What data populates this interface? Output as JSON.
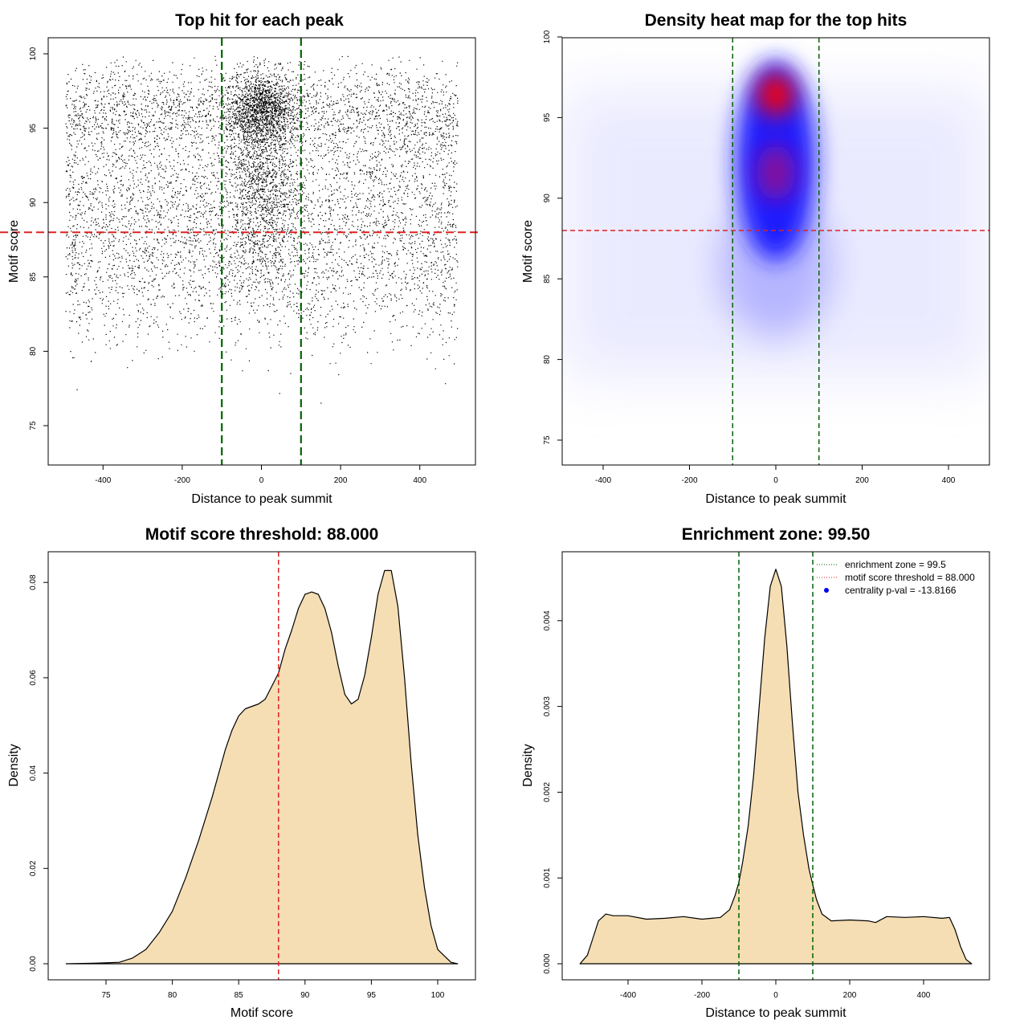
{
  "colors": {
    "threshold_line": "#dd2222",
    "zone_line": "#006400",
    "density_fill": "#f5deb3",
    "heat_low": "#ffffff",
    "heat_mid": "#0000ff",
    "heat_high": "#ff0000",
    "centrality_dot": "#0000ff"
  },
  "chart_data": [
    {
      "type": "scatter",
      "title": "Top hit for each peak",
      "xlabel": "Distance to peak summit",
      "ylabel": "Motif score",
      "xlim": [
        -500,
        500
      ],
      "ylim": [
        73,
        101
      ],
      "xticks": [
        -400,
        -200,
        0,
        200,
        400
      ],
      "yticks": [
        75,
        80,
        85,
        90,
        95,
        100
      ],
      "hline": 88,
      "vlines": [
        -100,
        100
      ],
      "points_description_counts": {
        "background": 9500,
        "central": 5000
      },
      "grid": false
    },
    {
      "type": "heatmap",
      "title": "Density heat map for the top hits",
      "xlabel": "Distance to peak summit",
      "ylabel": "Motif score",
      "xlim": [
        -500,
        500
      ],
      "ylim": [
        73,
        100
      ],
      "xticks": [
        -400,
        -200,
        0,
        200,
        400
      ],
      "yticks": [
        75,
        80,
        85,
        90,
        95,
        100
      ],
      "hline": 88,
      "vlines": [
        -100,
        100
      ],
      "hotspots": [
        {
          "x": 0,
          "y": 96.5,
          "intensity": 1.0
        },
        {
          "x": 0,
          "y": 91.8,
          "intensity": 0.8
        },
        {
          "x": 0,
          "y": 86.5,
          "intensity": 0.35
        }
      ]
    },
    {
      "type": "area",
      "title": "Motif score threshold: 88.000",
      "xlabel": "Motif score",
      "ylabel": "Density",
      "xlim": [
        71.5,
        102.5
      ],
      "ylim": [
        0,
        0.086
      ],
      "xticks": [
        75,
        80,
        85,
        90,
        95,
        100
      ],
      "yticks": [
        0.0,
        0.02,
        0.04,
        0.06,
        0.08
      ],
      "vline": 88,
      "x": [
        72,
        74,
        76,
        77,
        78,
        79,
        80,
        81,
        82,
        83,
        84,
        84.5,
        85,
        85.5,
        86,
        86.5,
        87,
        88,
        88.5,
        89,
        89.5,
        90,
        90.5,
        91,
        91.5,
        92,
        92.5,
        93,
        93.5,
        94,
        94.5,
        95,
        95.5,
        96,
        96.5,
        97,
        97.5,
        98,
        98.5,
        99,
        99.5,
        100,
        101,
        101.5
      ],
      "y": [
        0.0,
        0.0001,
        0.0003,
        0.0012,
        0.003,
        0.0065,
        0.011,
        0.018,
        0.026,
        0.035,
        0.045,
        0.049,
        0.052,
        0.0535,
        0.054,
        0.0545,
        0.0555,
        0.061,
        0.066,
        0.07,
        0.0745,
        0.0775,
        0.078,
        0.0775,
        0.0745,
        0.0695,
        0.0625,
        0.0565,
        0.0545,
        0.0555,
        0.0605,
        0.0685,
        0.0775,
        0.0825,
        0.0825,
        0.075,
        0.06,
        0.042,
        0.027,
        0.016,
        0.008,
        0.003,
        0.0003,
        0.0
      ]
    },
    {
      "type": "area",
      "title": "Enrichment zone: 99.50",
      "xlabel": "Distance to peak summit",
      "ylabel": "Density",
      "xlim": [
        -550,
        550
      ],
      "ylim": [
        -0.00019,
        0.0047
      ],
      "xticks": [
        -400,
        -200,
        0,
        200,
        400
      ],
      "yticks": [
        0.0,
        0.001,
        0.002,
        0.003,
        0.004
      ],
      "ytick_labels": [
        "0.000",
        "0.001",
        "0.002",
        "0.003",
        "0.004"
      ],
      "vlines": [
        -100,
        100
      ],
      "x": [
        -530,
        -510,
        -495,
        -480,
        -460,
        -440,
        -400,
        -350,
        -300,
        -250,
        -200,
        -150,
        -125,
        -110,
        -100,
        -90,
        -75,
        -60,
        -45,
        -30,
        -15,
        0,
        15,
        30,
        45,
        60,
        75,
        90,
        100,
        110,
        125,
        150,
        200,
        250,
        270,
        300,
        350,
        400,
        450,
        470,
        485,
        500,
        515,
        530
      ],
      "y": [
        0.0,
        0.0001,
        0.0003,
        0.0005,
        0.00058,
        0.00056,
        0.00056,
        0.00052,
        0.00053,
        0.00055,
        0.00052,
        0.00054,
        0.00063,
        0.0008,
        0.00095,
        0.00118,
        0.0016,
        0.0022,
        0.003,
        0.0038,
        0.0044,
        0.0046,
        0.0044,
        0.0037,
        0.0028,
        0.002,
        0.0015,
        0.0011,
        0.00092,
        0.00075,
        0.00058,
        0.0005,
        0.00051,
        0.0005,
        0.00048,
        0.00055,
        0.00054,
        0.00055,
        0.00053,
        0.00054,
        0.0004,
        0.0002,
        5e-05,
        0.0
      ],
      "legend": [
        {
          "label": "enrichment zone = 99.5",
          "style": "dotted",
          "color": "#006400"
        },
        {
          "label": "motif score threshold = 88.000",
          "style": "dotted",
          "color": "#dd2222"
        },
        {
          "label": "centrality p-val = -13.8166",
          "style": "dot",
          "color": "#0000ff"
        }
      ],
      "legend_position": "top-right"
    }
  ]
}
